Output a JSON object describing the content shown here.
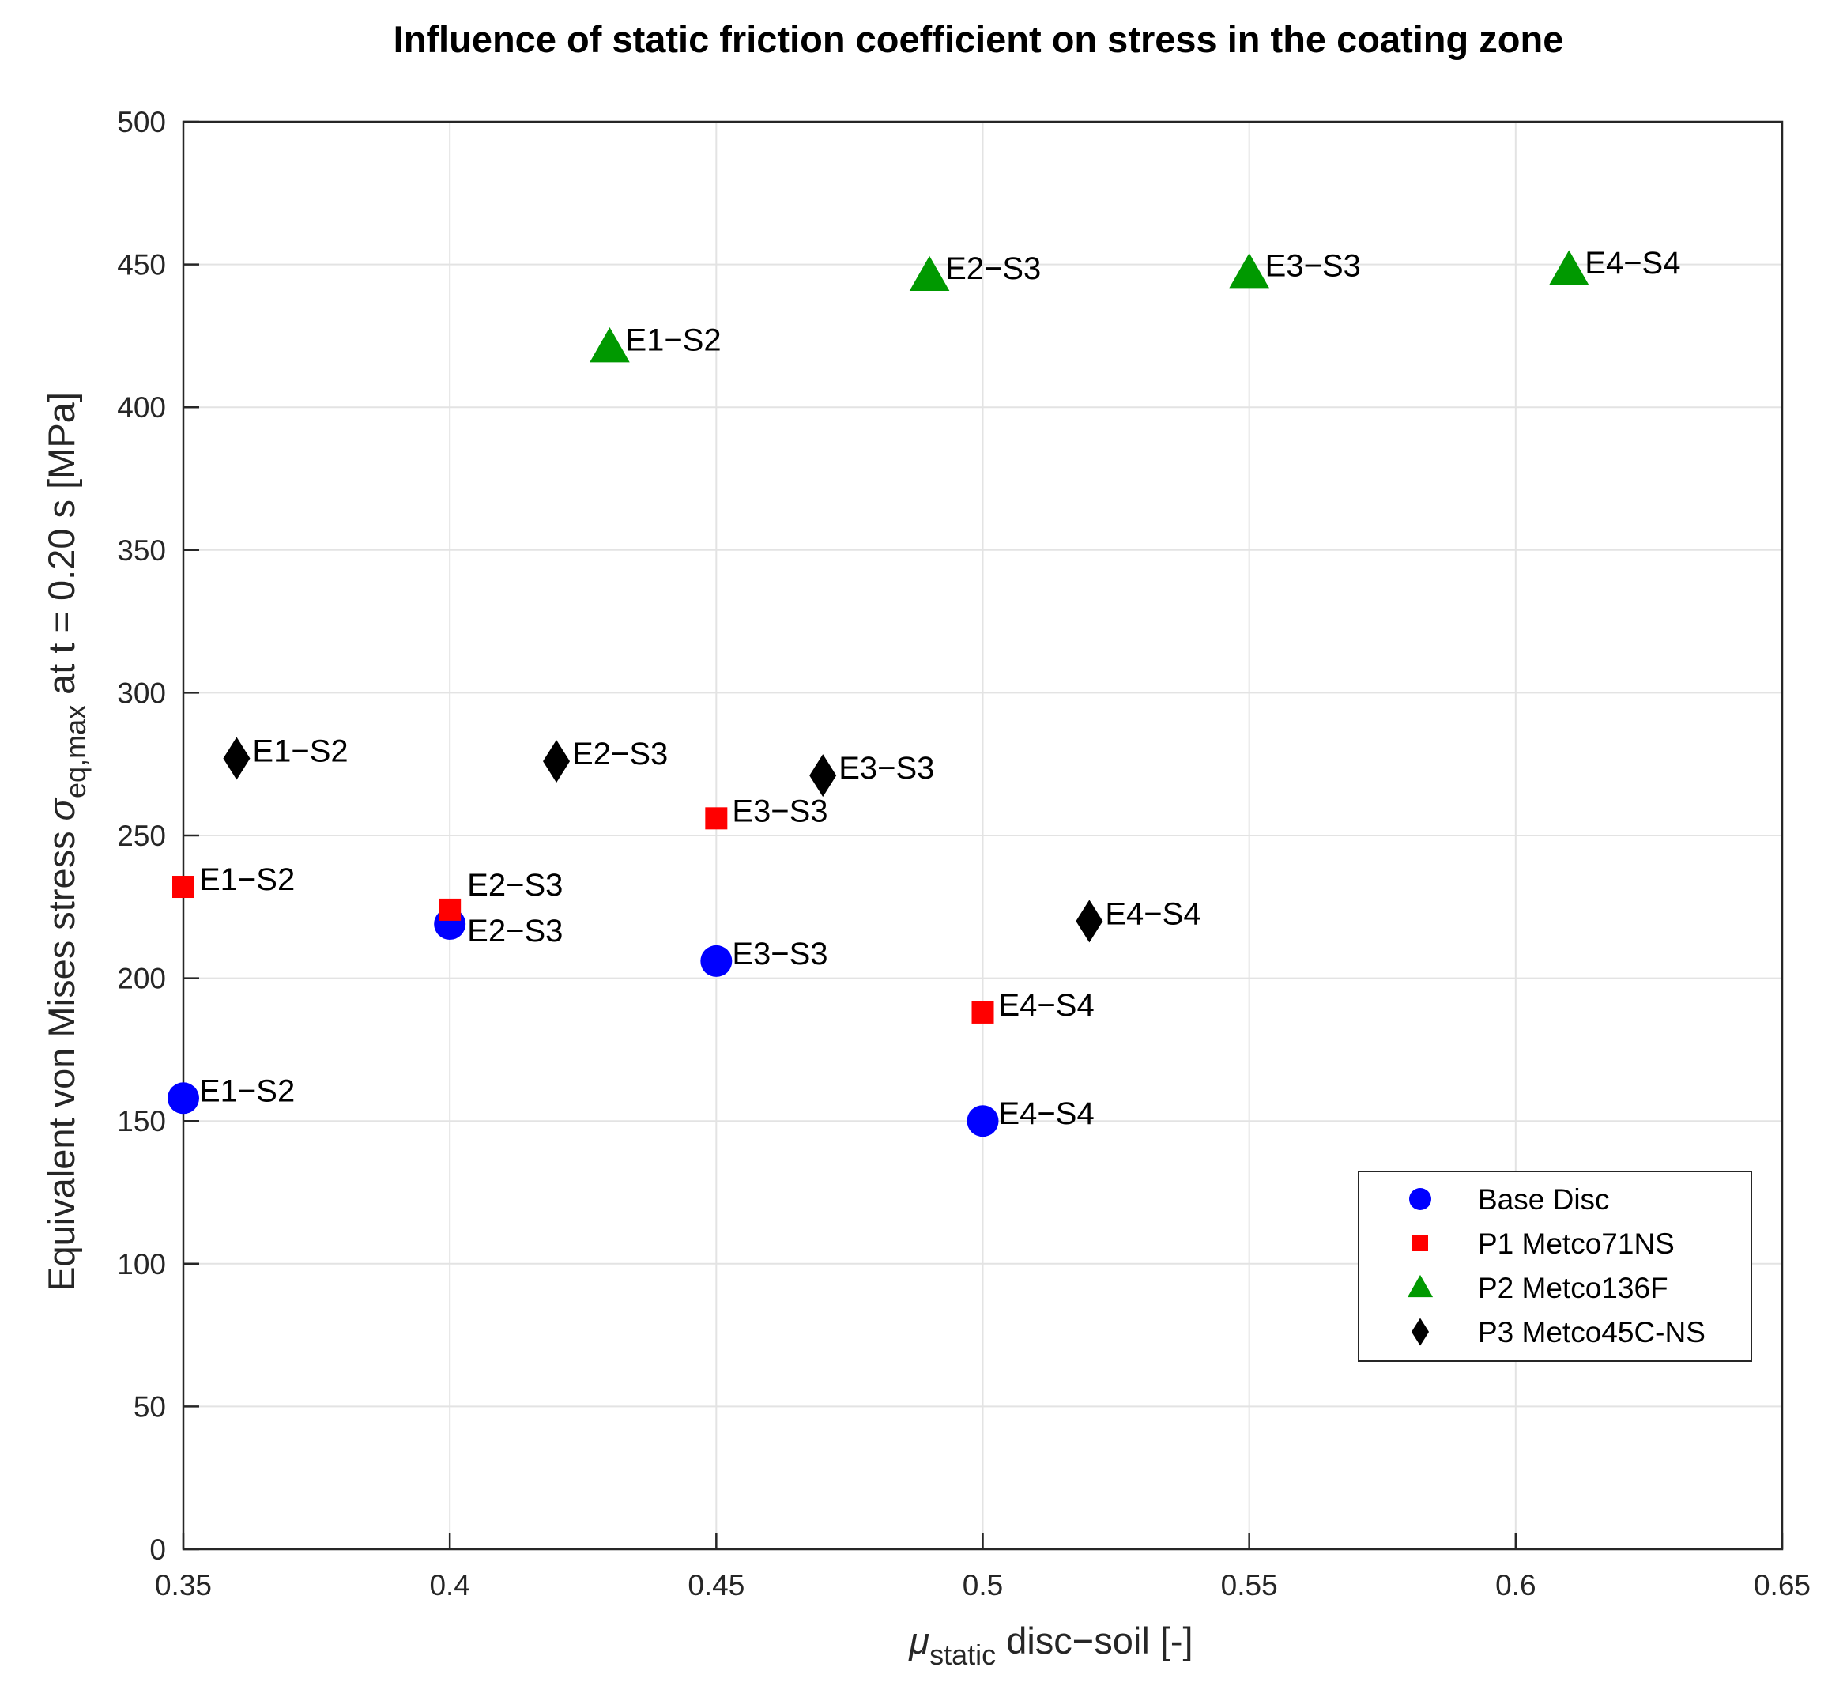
{
  "chart_data": {
    "type": "scatter",
    "title": "Influence of static friction coefficient on stress in the coating zone",
    "xlabel": {
      "symbol": "μ",
      "subscript": "static",
      "text": " disc−soil [-]"
    },
    "ylabel": {
      "prefix": "Equivalent von Mises stress ",
      "symbol": "σ",
      "subscript": "eq,max",
      "suffix": " at t = 0.20 s [MPa]"
    },
    "xlim": [
      0.35,
      0.65
    ],
    "ylim": [
      0,
      500
    ],
    "xticks": [
      0.35,
      0.4,
      0.45,
      0.5,
      0.55,
      0.6,
      0.65
    ],
    "xtick_labels": [
      "0.35",
      "0.4",
      "0.45",
      "0.5",
      "0.55",
      "0.6",
      "0.65"
    ],
    "yticks": [
      0,
      50,
      100,
      150,
      200,
      250,
      300,
      350,
      400,
      450,
      500
    ],
    "ytick_labels": [
      "0",
      "50",
      "100",
      "150",
      "200",
      "250",
      "300",
      "350",
      "400",
      "450",
      "500"
    ],
    "grid": true,
    "legend_position": "bottom-right",
    "series": [
      {
        "name": "Base Disc",
        "marker": "circle",
        "color": "#0000ff",
        "points": [
          {
            "x": 0.35,
            "y": 158,
            "label": "E1−S2",
            "label_pos": "right"
          },
          {
            "x": 0.4,
            "y": 219,
            "label": "E2−S3",
            "label_pos": "below-right"
          },
          {
            "x": 0.45,
            "y": 206,
            "label": "E3−S3",
            "label_pos": "right"
          },
          {
            "x": 0.5,
            "y": 150,
            "label": "E4−S4",
            "label_pos": "right"
          }
        ]
      },
      {
        "name": "P1 Metco71NS",
        "marker": "square",
        "color": "#ff0000",
        "points": [
          {
            "x": 0.35,
            "y": 232,
            "label": "E1−S2",
            "label_pos": "right"
          },
          {
            "x": 0.4,
            "y": 224,
            "label": "E2−S3",
            "label_pos": "above-right"
          },
          {
            "x": 0.45,
            "y": 256,
            "label": "E3−S3",
            "label_pos": "right"
          },
          {
            "x": 0.5,
            "y": 188,
            "label": "E4−S4",
            "label_pos": "right"
          }
        ]
      },
      {
        "name": "P2 Metco136F",
        "marker": "triangle",
        "color": "#009900",
        "points": [
          {
            "x": 0.43,
            "y": 421,
            "label": "E1−S2",
            "label_pos": "right"
          },
          {
            "x": 0.49,
            "y": 446,
            "label": "E2−S3",
            "label_pos": "right"
          },
          {
            "x": 0.55,
            "y": 447,
            "label": "E3−S3",
            "label_pos": "right"
          },
          {
            "x": 0.61,
            "y": 448,
            "label": "E4−S4",
            "label_pos": "right"
          }
        ]
      },
      {
        "name": "P3 Metco45C-NS",
        "marker": "diamond",
        "color": "#000000",
        "points": [
          {
            "x": 0.36,
            "y": 277,
            "label": "E1−S2",
            "label_pos": "right"
          },
          {
            "x": 0.42,
            "y": 276,
            "label": "E2−S3",
            "label_pos": "right"
          },
          {
            "x": 0.47,
            "y": 271,
            "label": "E3−S3",
            "label_pos": "right"
          },
          {
            "x": 0.52,
            "y": 220,
            "label": "E4−S4",
            "label_pos": "right"
          }
        ]
      }
    ]
  }
}
